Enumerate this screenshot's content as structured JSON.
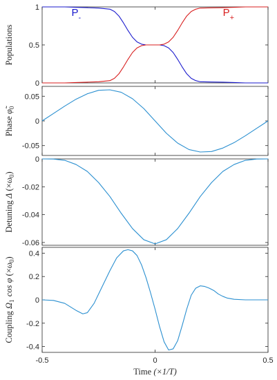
{
  "chart_data": [
    {
      "type": "line",
      "ylabel": "Populations",
      "xlim": [
        -0.5,
        0.5
      ],
      "ylim": [
        0,
        1
      ],
      "yticks": [
        0,
        0.5,
        1
      ],
      "ytick_labels": [
        "0",
        "0.5",
        "1"
      ],
      "grid": false,
      "annotations": [
        {
          "text": "P",
          "sub": "-",
          "color": "#1a1acd"
        },
        {
          "text": "P",
          "sub": "+",
          "color": "#d81e1e"
        }
      ],
      "series": [
        {
          "name": "P-",
          "color": "#1a1acd",
          "x": [
            -0.5,
            -0.45,
            -0.4,
            -0.35,
            -0.3,
            -0.25,
            -0.2,
            -0.18,
            -0.16,
            -0.14,
            -0.12,
            -0.1,
            -0.08,
            -0.06,
            -0.04,
            -0.02,
            0,
            0.02,
            0.04,
            0.06,
            0.08,
            0.1,
            0.12,
            0.14,
            0.16,
            0.18,
            0.2,
            0.25,
            0.3,
            0.35,
            0.4,
            0.45,
            0.5
          ],
          "values": [
            1,
            1,
            1,
            0.995,
            0.99,
            0.985,
            0.97,
            0.94,
            0.88,
            0.79,
            0.69,
            0.6,
            0.54,
            0.51,
            0.5,
            0.5,
            0.5,
            0.5,
            0.49,
            0.46,
            0.4,
            0.31,
            0.21,
            0.12,
            0.06,
            0.03,
            0.015,
            0.012,
            0.01,
            0.005,
            0,
            0,
            0
          ]
        },
        {
          "name": "P+",
          "color": "#d81e1e",
          "x": [
            -0.5,
            -0.45,
            -0.4,
            -0.35,
            -0.3,
            -0.25,
            -0.2,
            -0.18,
            -0.16,
            -0.14,
            -0.12,
            -0.1,
            -0.08,
            -0.06,
            -0.04,
            -0.02,
            0,
            0.02,
            0.04,
            0.06,
            0.08,
            0.1,
            0.12,
            0.14,
            0.16,
            0.18,
            0.2,
            0.25,
            0.3,
            0.35,
            0.4,
            0.45,
            0.5
          ],
          "values": [
            0,
            0,
            0,
            0.005,
            0.01,
            0.015,
            0.03,
            0.06,
            0.12,
            0.21,
            0.31,
            0.4,
            0.46,
            0.49,
            0.5,
            0.5,
            0.5,
            0.5,
            0.51,
            0.54,
            0.6,
            0.69,
            0.79,
            0.88,
            0.94,
            0.97,
            0.985,
            0.988,
            0.99,
            0.995,
            1,
            1,
            1
          ]
        }
      ]
    },
    {
      "type": "line",
      "ylabel": "Phase",
      "ylabel_symbol": "φ̃",
      "ylabel_sub": "0",
      "xlim": [
        -0.5,
        0.5
      ],
      "ylim": [
        -0.07,
        0.07
      ],
      "yticks": [
        -0.05,
        0,
        0.05
      ],
      "ytick_labels": [
        "-0.05",
        "0",
        "0.05"
      ],
      "grid": false,
      "series": [
        {
          "color": "#2a8fd0",
          "x": [
            -0.5,
            -0.45,
            -0.4,
            -0.35,
            -0.3,
            -0.25,
            -0.2,
            -0.15,
            -0.1,
            -0.05,
            0,
            0.05,
            0.1,
            0.15,
            0.2,
            0.25,
            0.3,
            0.35,
            0.4,
            0.45,
            0.5
          ],
          "values": [
            0,
            0.015,
            0.03,
            0.044,
            0.055,
            0.062,
            0.063,
            0.058,
            0.045,
            0.025,
            0,
            -0.025,
            -0.045,
            -0.058,
            -0.063,
            -0.062,
            -0.055,
            -0.044,
            -0.03,
            -0.015,
            0
          ]
        }
      ]
    },
    {
      "type": "line",
      "ylabel": "Detuning",
      "ylabel_symbol": "Δ",
      "ylabel_unit": "(×ω",
      "ylabel_unit_sub": "0",
      "ylabel_unit_close": ")",
      "xlim": [
        -0.5,
        0.5
      ],
      "ylim": [
        -0.062,
        0
      ],
      "yticks": [
        -0.06,
        -0.04,
        -0.02,
        0
      ],
      "ytick_labels": [
        "-0.06",
        "-0.04",
        "-0.02",
        "0"
      ],
      "grid": false,
      "series": [
        {
          "color": "#2a8fd0",
          "x": [
            -0.5,
            -0.45,
            -0.4,
            -0.35,
            -0.3,
            -0.25,
            -0.2,
            -0.15,
            -0.1,
            -0.05,
            0,
            0.05,
            0.1,
            0.15,
            0.2,
            0.25,
            0.3,
            0.35,
            0.4,
            0.45,
            0.5
          ],
          "values": [
            0,
            -0.0001,
            -0.001,
            -0.004,
            -0.009,
            -0.017,
            -0.027,
            -0.039,
            -0.05,
            -0.058,
            -0.061,
            -0.058,
            -0.05,
            -0.039,
            -0.027,
            -0.017,
            -0.009,
            -0.004,
            -0.001,
            -0.0001,
            0
          ]
        }
      ]
    },
    {
      "type": "line",
      "ylabel": "Coupling",
      "ylabel_symbol": "Ω",
      "ylabel_symbol_sub": "1",
      "ylabel_func": "cos φ",
      "ylabel_unit": "(×ω",
      "ylabel_unit_sub": "0",
      "ylabel_unit_close": ")",
      "xlabel": "Time",
      "xlabel_unit": "(×1/T)",
      "xlim": [
        -0.5,
        0.5
      ],
      "ylim": [
        -0.45,
        0.45
      ],
      "yticks": [
        -0.4,
        -0.2,
        0,
        0.2,
        0.4
      ],
      "ytick_labels": [
        "-0.4",
        "-0.2",
        "0",
        "0.2",
        "0.4"
      ],
      "xticks": [
        -0.5,
        0,
        0.5
      ],
      "xtick_labels": [
        "-0.5",
        "0",
        "0.5"
      ],
      "grid": false,
      "series": [
        {
          "color": "#2a8fd0",
          "x": [
            -0.5,
            -0.45,
            -0.4,
            -0.35,
            -0.32,
            -0.3,
            -0.27,
            -0.24,
            -0.2,
            -0.17,
            -0.14,
            -0.12,
            -0.1,
            -0.08,
            -0.06,
            -0.04,
            -0.02,
            0,
            0.02,
            0.04,
            0.06,
            0.08,
            0.1,
            0.12,
            0.14,
            0.16,
            0.18,
            0.2,
            0.22,
            0.24,
            0.26,
            0.28,
            0.3,
            0.32,
            0.35,
            0.4,
            0.45,
            0.5
          ],
          "values": [
            0,
            -0.005,
            -0.03,
            -0.09,
            -0.12,
            -0.11,
            -0.03,
            0.09,
            0.25,
            0.36,
            0.42,
            0.43,
            0.42,
            0.38,
            0.3,
            0.19,
            0.06,
            -0.08,
            -0.23,
            -0.36,
            -0.43,
            -0.42,
            -0.35,
            -0.22,
            -0.08,
            0.04,
            0.1,
            0.12,
            0.115,
            0.1,
            0.08,
            0.05,
            0.03,
            0.015,
            0.005,
            0,
            0,
            0
          ]
        }
      ]
    }
  ]
}
